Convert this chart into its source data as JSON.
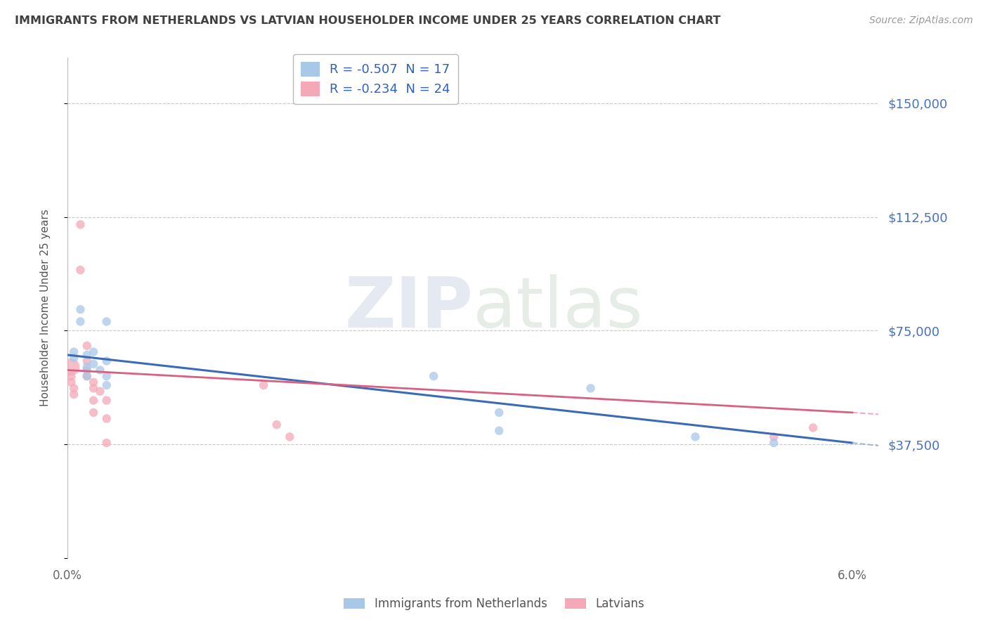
{
  "title": "IMMIGRANTS FROM NETHERLANDS VS LATVIAN HOUSEHOLDER INCOME UNDER 25 YEARS CORRELATION CHART",
  "source": "Source: ZipAtlas.com",
  "ylabel": "Householder Income Under 25 years",
  "watermark_zip": "ZIP",
  "watermark_atlas": "atlas",
  "yticks": [
    0,
    37500,
    75000,
    112500,
    150000
  ],
  "ytick_labels": [
    "",
    "$37,500",
    "$75,000",
    "$112,500",
    "$150,000"
  ],
  "xlim": [
    0.0,
    0.062
  ],
  "ylim": [
    5000,
    165000
  ],
  "blue_scatter": [
    [
      0.0005,
      68000
    ],
    [
      0.0005,
      66000
    ],
    [
      0.001,
      82000
    ],
    [
      0.001,
      78000
    ],
    [
      0.0015,
      67000
    ],
    [
      0.0015,
      63000
    ],
    [
      0.0015,
      60000
    ],
    [
      0.002,
      68000
    ],
    [
      0.002,
      64000
    ],
    [
      0.0025,
      62000
    ],
    [
      0.003,
      78000
    ],
    [
      0.003,
      65000
    ],
    [
      0.003,
      60000
    ],
    [
      0.003,
      57000
    ],
    [
      0.028,
      60000
    ],
    [
      0.033,
      48000
    ],
    [
      0.033,
      42000
    ],
    [
      0.04,
      56000
    ],
    [
      0.048,
      40000
    ],
    [
      0.054,
      38000
    ]
  ],
  "blue_sizes": [
    80,
    80,
    80,
    80,
    80,
    80,
    80,
    80,
    80,
    80,
    80,
    80,
    80,
    80,
    80,
    80,
    80,
    80,
    80,
    80
  ],
  "pink_scatter": [
    [
      0.0003,
      63000
    ],
    [
      0.0003,
      60000
    ],
    [
      0.0003,
      58000
    ],
    [
      0.0005,
      56000
    ],
    [
      0.0005,
      54000
    ],
    [
      0.001,
      110000
    ],
    [
      0.001,
      95000
    ],
    [
      0.0015,
      70000
    ],
    [
      0.0015,
      65000
    ],
    [
      0.0015,
      62000
    ],
    [
      0.0015,
      60000
    ],
    [
      0.002,
      58000
    ],
    [
      0.002,
      56000
    ],
    [
      0.002,
      52000
    ],
    [
      0.002,
      48000
    ],
    [
      0.0025,
      55000
    ],
    [
      0.003,
      52000
    ],
    [
      0.003,
      46000
    ],
    [
      0.003,
      38000
    ],
    [
      0.015,
      57000
    ],
    [
      0.016,
      44000
    ],
    [
      0.017,
      40000
    ],
    [
      0.054,
      40000
    ],
    [
      0.057,
      43000
    ]
  ],
  "pink_sizes": [
    300,
    80,
    80,
    80,
    80,
    80,
    80,
    80,
    80,
    80,
    80,
    80,
    80,
    80,
    80,
    80,
    80,
    80,
    80,
    80,
    80,
    80,
    80,
    80
  ],
  "blue_color": "#a8c8e8",
  "pink_color": "#f4a8b8",
  "blue_line_color": "#3b6bb5",
  "pink_line_color": "#d96080",
  "blue_dash_color": "#a0b8d8",
  "background_color": "#ffffff",
  "grid_color": "#c8c8c8",
  "title_color": "#404040",
  "right_tick_color": "#4472c4",
  "blue_line": [
    [
      0.0,
      67000
    ],
    [
      0.06,
      38000
    ]
  ],
  "pink_line": [
    [
      0.0,
      62000
    ],
    [
      0.06,
      48000
    ]
  ],
  "blue_dash_line": [
    [
      0.06,
      38000
    ],
    [
      0.095,
      22000
    ]
  ],
  "pink_dash_line": [
    [
      0.06,
      48000
    ],
    [
      0.095,
      38000
    ]
  ]
}
